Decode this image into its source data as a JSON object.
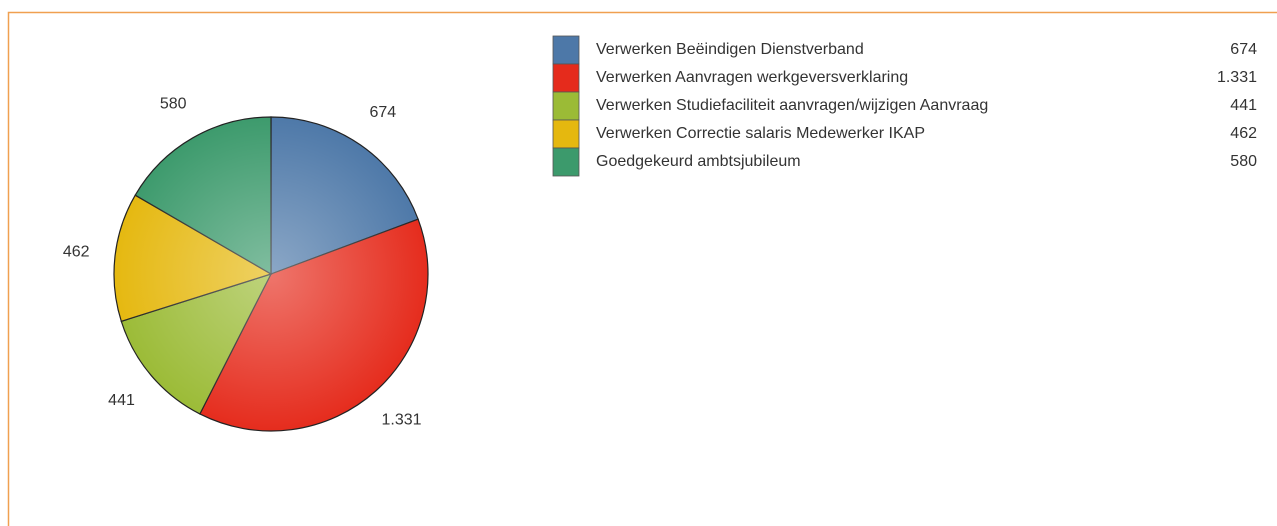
{
  "chart_data": {
    "type": "pie",
    "categories": [
      "Verwerken Beëindigen Dienstverband",
      "Verwerken Aanvragen werkgeversverklaring",
      "Verwerken Studiefaciliteit aanvragen/wijzigen Aanvraag",
      "Verwerken Correctie salaris Medewerker IKAP",
      "Goedgekeurd ambtsjubileum"
    ],
    "values": [
      674,
      1331,
      441,
      462,
      580
    ],
    "value_labels": [
      "674",
      "1.331",
      "441",
      "462",
      "580"
    ],
    "colors": [
      "#4d78a8",
      "#e52b1c",
      "#9bbb36",
      "#e5b80f",
      "#3c9a6c"
    ],
    "legend": "right"
  }
}
